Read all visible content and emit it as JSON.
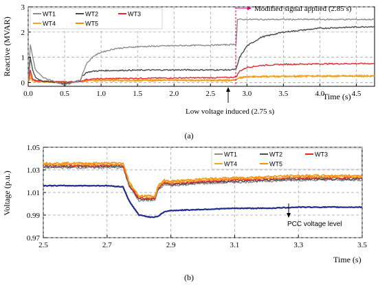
{
  "colors": {
    "WT1": "#8c8c8c",
    "WT2": "#4a4a4a",
    "WT3": "#e8262a",
    "WT4": "#f5a623",
    "WT5": "#ff8a00",
    "PCC": "#1f2d8f",
    "marker": "#e0007a",
    "grid": "#9a9a9a"
  },
  "chart_data": [
    {
      "type": "line",
      "panel_label": "(a)",
      "xlabel": "Time (s)",
      "ylabel": "Reactive (MVAR)",
      "xlim": [
        0,
        4.75
      ],
      "ylim": [
        -0.15,
        3.0
      ],
      "xticks": [
        "0.0",
        "0.5",
        "1.0",
        "1.5",
        "2.0",
        "2.5",
        "3.0",
        "3.5",
        "4.0",
        "4.5"
      ],
      "xtick_values": [
        0,
        0.5,
        1.0,
        1.5,
        2.0,
        2.5,
        3.0,
        3.5,
        4.0,
        4.5
      ],
      "yticks": [
        "0",
        "1",
        "2",
        "3"
      ],
      "ytick_values": [
        0,
        1,
        2,
        3
      ],
      "grid": true,
      "legend_position": "top-left",
      "legend": [
        "WT1",
        "WT2",
        "WT3",
        "WT4",
        "WT5"
      ],
      "annotations": {
        "modified_signal": "Modified signal applied (2.85 s)",
        "low_voltage": "Low voltage induced (2.75 s)"
      },
      "series": [
        {
          "name": "WT1",
          "x": [
            0,
            0.03,
            0.06,
            0.1,
            0.2,
            0.4,
            0.5,
            0.6,
            0.72,
            0.74,
            0.8,
            0.9,
            1.0,
            1.2,
            1.5,
            2.0,
            2.5,
            2.75,
            2.85,
            2.87,
            3.0,
            3.5,
            4.0,
            4.5,
            4.75
          ],
          "y": [
            0.0,
            1.5,
            1.05,
            0.5,
            0.2,
            0.0,
            -0.1,
            0.0,
            0.1,
            0.3,
            0.75,
            1.05,
            1.2,
            1.35,
            1.42,
            1.46,
            1.48,
            1.5,
            1.52,
            2.5,
            2.5,
            2.5,
            2.5,
            2.5,
            2.5
          ]
        },
        {
          "name": "WT2",
          "x": [
            0,
            0.03,
            0.06,
            0.1,
            0.2,
            0.4,
            0.5,
            0.6,
            0.72,
            0.74,
            0.8,
            0.9,
            1.0,
            1.5,
            2.0,
            2.5,
            2.75,
            2.85,
            2.9,
            3.0,
            3.2,
            3.5,
            4.0,
            4.5,
            4.75
          ],
          "y": [
            0.0,
            1.0,
            0.5,
            0.2,
            0.05,
            0.0,
            -0.05,
            0.0,
            0.1,
            0.25,
            0.4,
            0.45,
            0.47,
            0.49,
            0.5,
            0.5,
            0.5,
            0.52,
            1.0,
            1.45,
            1.8,
            2.0,
            2.15,
            2.2,
            2.22
          ]
        },
        {
          "name": "WT3",
          "x": [
            0,
            0.03,
            0.06,
            0.1,
            0.2,
            0.5,
            0.72,
            0.8,
            1.0,
            1.5,
            2.0,
            2.5,
            2.75,
            2.85,
            2.9,
            3.0,
            3.2,
            3.5,
            4.0,
            4.5,
            4.75
          ],
          "y": [
            0.0,
            0.5,
            0.15,
            0.08,
            0.05,
            0.02,
            0.05,
            0.12,
            0.15,
            0.17,
            0.18,
            0.19,
            0.2,
            0.22,
            0.45,
            0.6,
            0.68,
            0.72,
            0.74,
            0.75,
            0.75
          ]
        },
        {
          "name": "WT4",
          "x": [
            0,
            0.03,
            0.06,
            0.1,
            0.5,
            0.72,
            0.8,
            1.0,
            1.5,
            2.0,
            2.5,
            2.75,
            2.85,
            2.9,
            3.0,
            3.5,
            4.0,
            4.5,
            4.75
          ],
          "y": [
            0.0,
            0.3,
            0.1,
            0.05,
            0.0,
            0.05,
            0.08,
            0.1,
            0.1,
            0.1,
            0.1,
            0.1,
            0.12,
            0.2,
            0.24,
            0.26,
            0.27,
            0.27,
            0.27
          ]
        },
        {
          "name": "WT5",
          "x": [
            0,
            0.03,
            0.06,
            0.1,
            0.5,
            0.72,
            0.8,
            1.0,
            1.5,
            2.0,
            2.5,
            2.75,
            2.85,
            2.9,
            3.0,
            3.5,
            4.0,
            4.5,
            4.75
          ],
          "y": [
            0.0,
            0.2,
            0.08,
            0.04,
            0.0,
            0.04,
            0.06,
            0.08,
            0.08,
            0.08,
            0.08,
            0.08,
            0.1,
            0.18,
            0.22,
            0.24,
            0.25,
            0.25,
            0.25
          ]
        }
      ]
    },
    {
      "type": "line",
      "panel_label": "(b)",
      "xlabel": "Time (s)",
      "ylabel": "Voltage (p.u.)",
      "xlim": [
        2.5,
        3.5
      ],
      "ylim": [
        0.97,
        1.05
      ],
      "xticks": [
        "2.5",
        "2.7",
        "2.9",
        "3.1",
        "3.3",
        "3.5"
      ],
      "xtick_values": [
        2.5,
        2.7,
        2.9,
        3.1,
        3.3,
        3.5
      ],
      "yticks": [
        "1.05",
        "1.03",
        "1.01",
        "0.99",
        "0.97"
      ],
      "ytick_values": [
        1.05,
        1.03,
        1.01,
        0.99,
        0.97
      ],
      "grid": true,
      "legend_position": "top-right",
      "legend": [
        "WT1",
        "WT2",
        "WT3",
        "WT4",
        "WT5"
      ],
      "annotations": {
        "pcc": "PCC voltage level"
      },
      "series": [
        {
          "name": "WT1",
          "x": [
            2.5,
            2.6,
            2.7,
            2.75,
            2.77,
            2.8,
            2.85,
            2.86,
            2.88,
            2.9,
            3.0,
            3.1,
            3.2,
            3.3,
            3.4,
            3.5
          ],
          "y": [
            1.032,
            1.032,
            1.032,
            1.032,
            1.015,
            1.003,
            1.003,
            1.012,
            1.017,
            1.016,
            1.018,
            1.019,
            1.02,
            1.021,
            1.021,
            1.021
          ]
        },
        {
          "name": "WT2",
          "x": [
            2.5,
            2.6,
            2.7,
            2.75,
            2.77,
            2.8,
            2.85,
            2.86,
            2.88,
            2.9,
            3.0,
            3.1,
            3.2,
            3.3,
            3.4,
            3.5
          ],
          "y": [
            1.033,
            1.033,
            1.033,
            1.033,
            1.016,
            1.004,
            1.004,
            1.013,
            1.018,
            1.017,
            1.019,
            1.02,
            1.021,
            1.022,
            1.022,
            1.022
          ]
        },
        {
          "name": "WT3",
          "x": [
            2.5,
            2.6,
            2.7,
            2.75,
            2.77,
            2.8,
            2.85,
            2.86,
            2.88,
            2.9,
            3.0,
            3.1,
            3.2,
            3.3,
            3.4,
            3.5
          ],
          "y": [
            1.034,
            1.034,
            1.034,
            1.034,
            1.017,
            1.005,
            1.005,
            1.014,
            1.019,
            1.018,
            1.02,
            1.021,
            1.022,
            1.023,
            1.023,
            1.023
          ]
        },
        {
          "name": "WT4",
          "x": [
            2.5,
            2.6,
            2.7,
            2.75,
            2.77,
            2.8,
            2.85,
            2.86,
            2.88,
            2.9,
            3.0,
            3.1,
            3.2,
            3.3,
            3.4,
            3.5
          ],
          "y": [
            1.035,
            1.035,
            1.035,
            1.035,
            1.018,
            1.006,
            1.006,
            1.015,
            1.02,
            1.019,
            1.021,
            1.022,
            1.023,
            1.024,
            1.024,
            1.024
          ]
        },
        {
          "name": "WT5",
          "x": [
            2.5,
            2.6,
            2.7,
            2.75,
            2.77,
            2.8,
            2.85,
            2.86,
            2.88,
            2.9,
            3.0,
            3.1,
            3.2,
            3.3,
            3.4,
            3.5
          ],
          "y": [
            1.036,
            1.036,
            1.036,
            1.036,
            1.019,
            1.007,
            1.007,
            1.016,
            1.021,
            1.02,
            1.022,
            1.023,
            1.024,
            1.025,
            1.025,
            1.025
          ]
        },
        {
          "name": "PCC",
          "x": [
            2.5,
            2.6,
            2.7,
            2.75,
            2.77,
            2.8,
            2.84,
            2.86,
            2.88,
            2.9,
            3.0,
            3.1,
            3.2,
            3.3,
            3.4,
            3.5
          ],
          "y": [
            1.016,
            1.016,
            1.016,
            1.015,
            1.002,
            0.99,
            0.988,
            0.989,
            0.993,
            0.994,
            0.995,
            0.996,
            0.996,
            0.997,
            0.997,
            0.997
          ]
        }
      ]
    }
  ]
}
